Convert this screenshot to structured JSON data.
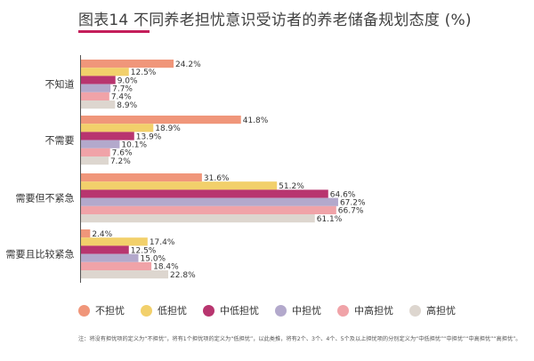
{
  "chart_data": {
    "type": "bar",
    "orientation": "horizontal",
    "title": "图表14 不同养老担忧意识受访者的养老储备规划态度 (%)",
    "categories": [
      "不知道",
      "不需要",
      "需要但不紧急",
      "需要且比较紧急"
    ],
    "series": [
      {
        "name": "不担忧",
        "color": "#f0967a",
        "values": [
          24.2,
          41.8,
          31.6,
          2.4
        ],
        "labels": [
          "24.2%",
          "41.8%",
          "31.6%",
          "2.4%"
        ]
      },
      {
        "name": "低担忧",
        "color": "#f2d06b",
        "values": [
          12.5,
          18.9,
          51.2,
          17.4
        ],
        "labels": [
          "12.5%",
          "18.9%",
          "51.2%",
          "17.4%"
        ]
      },
      {
        "name": "中低担忧",
        "color": "#b8356f",
        "values": [
          9.0,
          13.9,
          64.6,
          12.5
        ],
        "labels": [
          "9.0%",
          "13.9%",
          "64.6%",
          "12.5%"
        ]
      },
      {
        "name": "中担忧",
        "color": "#b3a9cc",
        "values": [
          7.7,
          10.1,
          67.2,
          15.0
        ],
        "labels": [
          "7.7%",
          "10.1%",
          "67.2%",
          "15.0%"
        ]
      },
      {
        "name": "中高担忧",
        "color": "#f0a3a8",
        "values": [
          7.4,
          7.6,
          66.7,
          18.4
        ],
        "labels": [
          "7.4%",
          "7.6%",
          "66.7%",
          "18.4%"
        ]
      },
      {
        "name": "高担忧",
        "color": "#ddd6cf",
        "values": [
          8.9,
          7.2,
          61.1,
          22.8
        ],
        "labels": [
          "8.9%",
          "7.2%",
          "61.1%",
          "22.8%"
        ]
      }
    ],
    "xlim": [
      0,
      80
    ],
    "grid": false,
    "legend_position": "bottom"
  },
  "footnote": "注：将没有担忧项的定义为“不担忧”，将有1个担忧项的定义为“低担忧”，以此类推，将有2个、3个、4个、5个及以上担忧项的分别定义为“中低担忧”“中担忧”“中高担忧”“高担忧”。"
}
